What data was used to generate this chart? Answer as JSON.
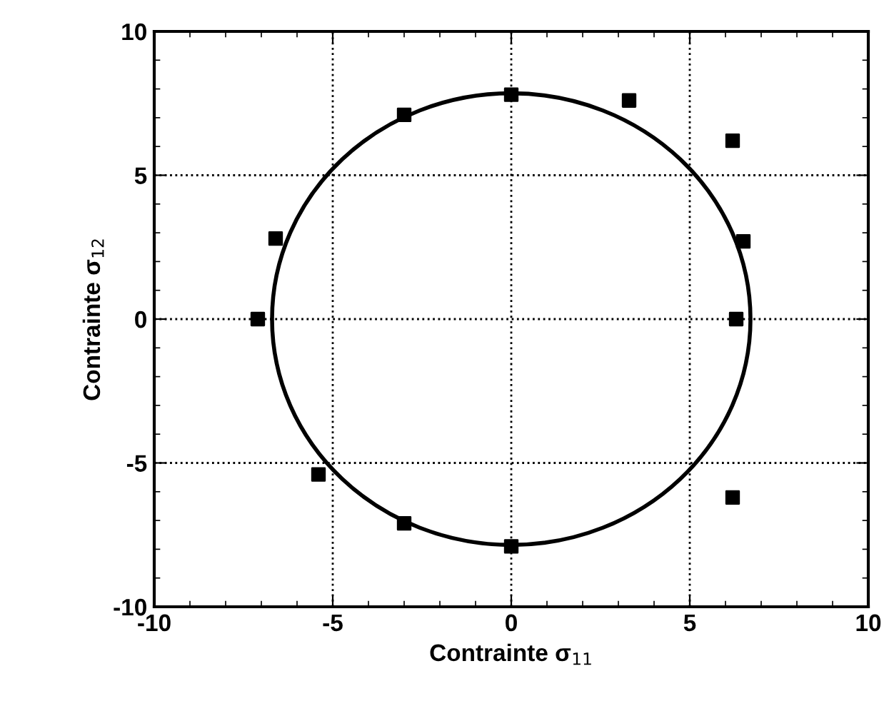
{
  "chart_data": {
    "type": "scatter",
    "xlabel": "Contrainte σ$_{11}$",
    "ylabel": "Contrainte σ$_{12}$",
    "xlim": [
      -10,
      10
    ],
    "ylim": [
      -10,
      10
    ],
    "xticks": [
      -10,
      -5,
      0,
      5,
      10
    ],
    "yticks": [
      -10,
      -5,
      0,
      5,
      10
    ],
    "grid": true,
    "series": [
      {
        "marker": "square",
        "color": "#000000",
        "x": [
          0,
          -3,
          3.3,
          6.2,
          -6.6,
          6.5,
          -7.1,
          6.3,
          -5.4,
          -3,
          0,
          6.2
        ],
        "values": [
          7.8,
          7.1,
          7.6,
          6.2,
          2.8,
          2.7,
          0,
          0,
          -5.4,
          -7.1,
          -7.9,
          -6.2
        ]
      }
    ]
  }
}
